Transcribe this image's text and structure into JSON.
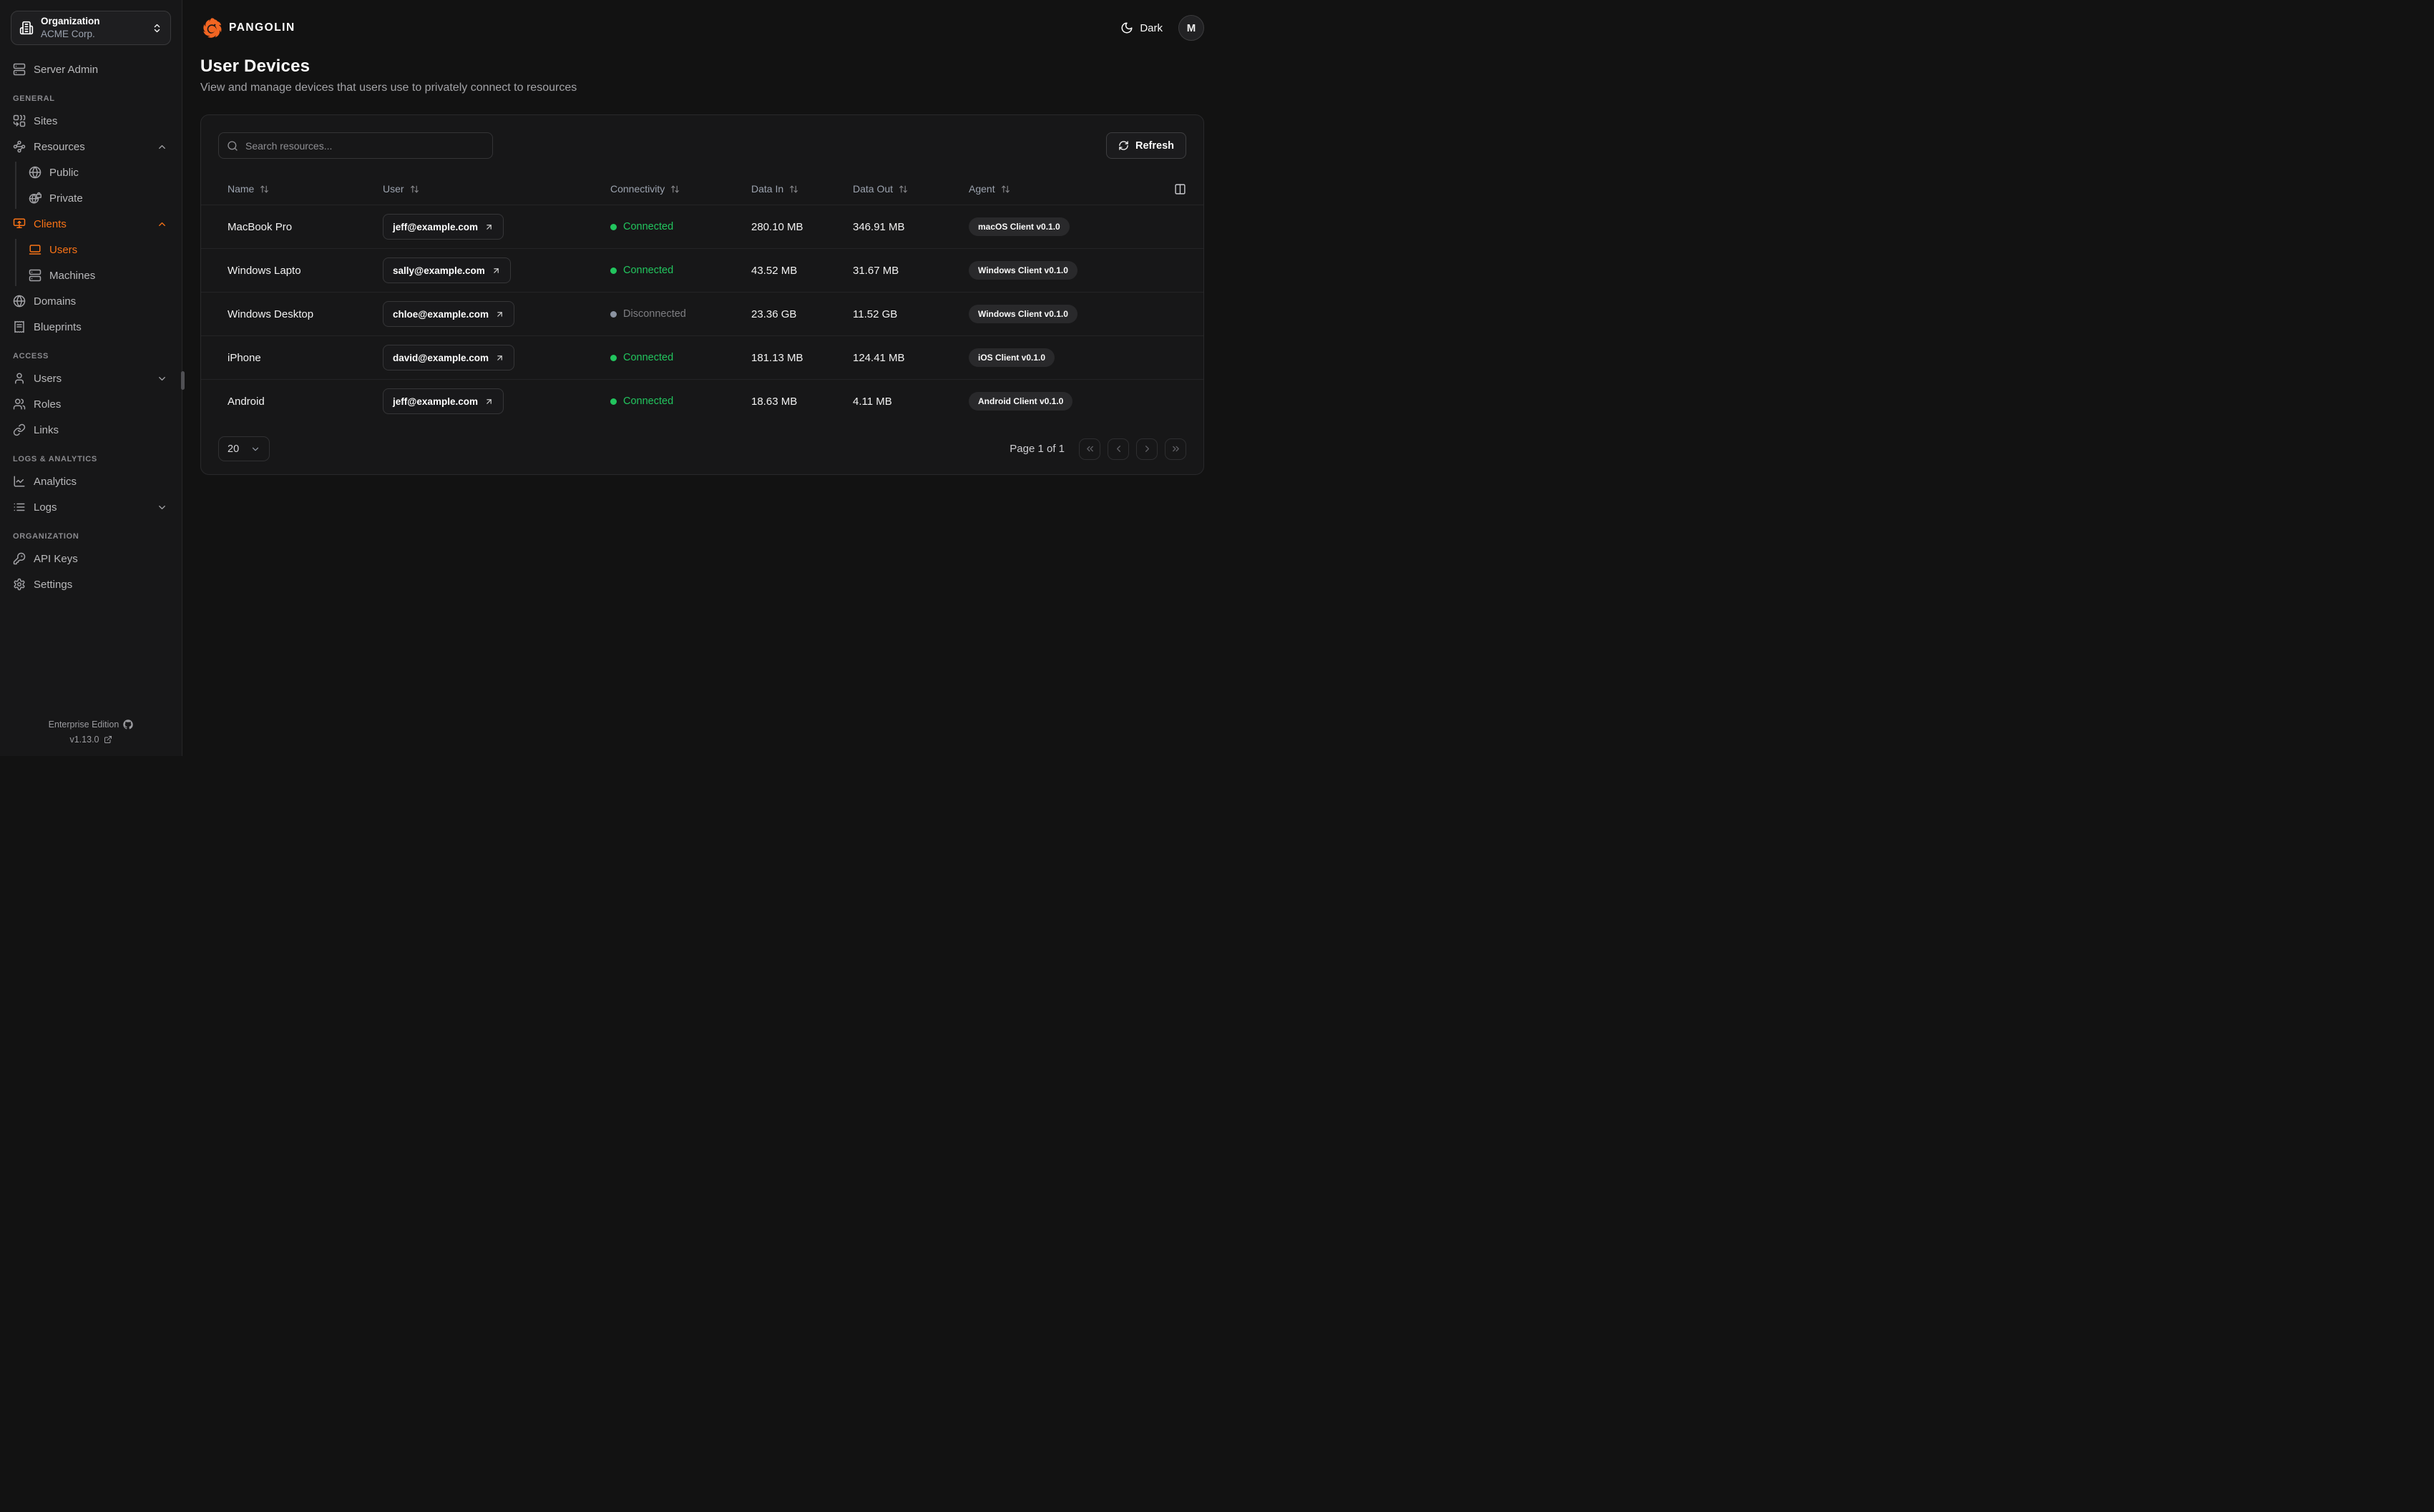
{
  "colors": {
    "accent": "#f97316",
    "logo_orange": "#f26522",
    "green": "#22c55e"
  },
  "sidebar": {
    "org": {
      "label": "Organization",
      "name": "ACME Corp.",
      "icon": "building"
    },
    "top_item": {
      "label": "Server Admin",
      "icon": "server"
    },
    "sections": [
      {
        "title": "GENERAL",
        "items": [
          {
            "label": "Sites",
            "icon": "combine"
          },
          {
            "label": "Resources",
            "icon": "waypoints",
            "chevron": "up",
            "children": [
              {
                "label": "Public",
                "icon": "globe"
              },
              {
                "label": "Private",
                "icon": "globe-lock"
              }
            ]
          },
          {
            "label": "Clients",
            "icon": "monitor-up",
            "chevron": "up",
            "active": true,
            "children": [
              {
                "label": "Users",
                "icon": "laptop",
                "active": true
              },
              {
                "label": "Machines",
                "icon": "server"
              }
            ]
          },
          {
            "label": "Domains",
            "icon": "globe"
          },
          {
            "label": "Blueprints",
            "icon": "receipt"
          }
        ]
      },
      {
        "title": "ACCESS",
        "items": [
          {
            "label": "Users",
            "icon": "user",
            "chevron": "down"
          },
          {
            "label": "Roles",
            "icon": "users"
          },
          {
            "label": "Links",
            "icon": "link"
          }
        ]
      },
      {
        "title": "LOGS & ANALYTICS",
        "items": [
          {
            "label": "Analytics",
            "icon": "chart-line"
          },
          {
            "label": "Logs",
            "icon": "list",
            "chevron": "down"
          }
        ]
      },
      {
        "title": "ORGANIZATION",
        "items": [
          {
            "label": "API Keys",
            "icon": "key"
          },
          {
            "label": "Settings",
            "icon": "settings"
          }
        ]
      }
    ],
    "footer": {
      "edition": "Enterprise Edition",
      "edition_icon": "github",
      "version": "v1.13.0",
      "version_icon": "external-link"
    }
  },
  "header": {
    "brand": "PANGOLIN",
    "brand_icon": "pangolin-logo",
    "theme_label": "Dark",
    "theme_icon": "moon",
    "avatar_initial": "M"
  },
  "page": {
    "title": "User Devices",
    "subtitle": "View and manage devices that users use to privately connect to resources"
  },
  "toolbar": {
    "search_placeholder": "Search resources...",
    "search_icon": "search",
    "refresh_label": "Refresh",
    "refresh_icon": "refresh",
    "columns_icon": "columns"
  },
  "table": {
    "columns": [
      "Name",
      "User",
      "Connectivity",
      "Data In",
      "Data Out",
      "Agent"
    ],
    "rows": [
      {
        "name": "MacBook Pro",
        "user": "jeff@example.com",
        "connectivity": "Connected",
        "connected": true,
        "data_in": "280.10 MB",
        "data_out": "346.91 MB",
        "agent": "macOS Client v0.1.0"
      },
      {
        "name": "Windows Lapto",
        "user": "sally@example.com",
        "connectivity": "Connected",
        "connected": true,
        "data_in": "43.52 MB",
        "data_out": "31.67 MB",
        "agent": "Windows Client v0.1.0"
      },
      {
        "name": "Windows Desktop",
        "user": "chloe@example.com",
        "connectivity": "Disconnected",
        "connected": false,
        "data_in": "23.36 GB",
        "data_out": "11.52 GB",
        "agent": "Windows Client v0.1.0"
      },
      {
        "name": "iPhone",
        "user": "david@example.com",
        "connectivity": "Connected",
        "connected": true,
        "data_in": "181.13 MB",
        "data_out": "124.41 MB",
        "agent": "iOS Client v0.1.0"
      },
      {
        "name": "Android",
        "user": "jeff@example.com",
        "connectivity": "Connected",
        "connected": true,
        "data_in": "18.63 MB",
        "data_out": "4.11 MB",
        "agent": "Android Client v0.1.0"
      }
    ]
  },
  "pagination": {
    "page_size": "20",
    "label": "Page 1 of 1",
    "buttons": [
      "first",
      "previous",
      "next",
      "last"
    ]
  }
}
